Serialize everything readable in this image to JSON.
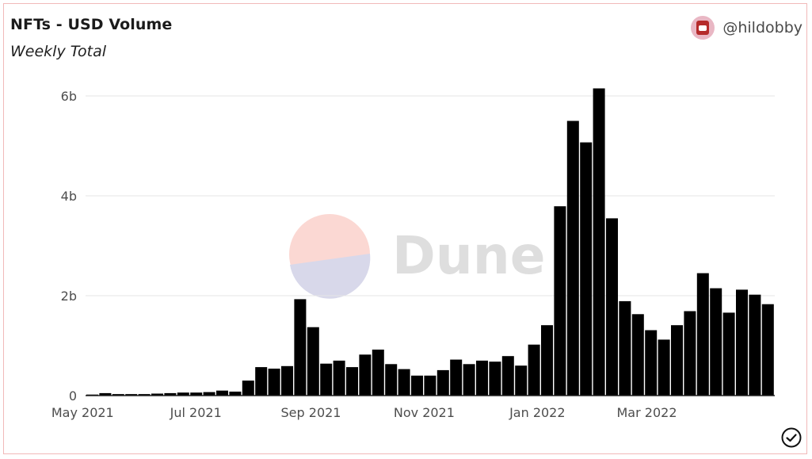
{
  "header": {
    "title": "NFTs - USD Volume",
    "subtitle": "Weekly Total",
    "author": "@hildobby"
  },
  "watermark": {
    "text": "Dune"
  },
  "chart_data": {
    "type": "bar",
    "title": "NFTs - USD Volume",
    "subtitle": "Weekly Total",
    "xlabel": "",
    "ylabel": "",
    "x_ticks": [
      "May 2021",
      "Jul 2021",
      "Sep 2021",
      "Nov 2021",
      "Jan 2022",
      "Mar 2022"
    ],
    "y_ticks": [
      "0",
      "2b",
      "4b",
      "6b"
    ],
    "ylim": [
      0,
      6.2
    ],
    "units": "billions USD",
    "grid": "horizontal",
    "bar_color": "#000000",
    "weeks": [
      "2021-05-03",
      "2021-05-10",
      "2021-05-17",
      "2021-05-24",
      "2021-05-31",
      "2021-06-07",
      "2021-06-14",
      "2021-06-21",
      "2021-06-28",
      "2021-07-05",
      "2021-07-12",
      "2021-07-19",
      "2021-07-26",
      "2021-08-02",
      "2021-08-09",
      "2021-08-16",
      "2021-08-23",
      "2021-08-30",
      "2021-09-06",
      "2021-09-13",
      "2021-09-20",
      "2021-09-27",
      "2021-10-04",
      "2021-10-11",
      "2021-10-18",
      "2021-10-25",
      "2021-11-01",
      "2021-11-08",
      "2021-11-15",
      "2021-11-22",
      "2021-11-29",
      "2021-12-06",
      "2021-12-13",
      "2021-12-20",
      "2021-12-27",
      "2022-01-03",
      "2022-01-10",
      "2022-01-17",
      "2022-01-24",
      "2022-01-31",
      "2022-02-07",
      "2022-02-14",
      "2022-02-21",
      "2022-02-28",
      "2022-03-07",
      "2022-03-14",
      "2022-03-21",
      "2022-03-28",
      "2022-04-04",
      "2022-04-11",
      "2022-04-18",
      "2022-04-25",
      "2022-05-02"
    ],
    "values": [
      0.02,
      0.05,
      0.03,
      0.03,
      0.03,
      0.04,
      0.05,
      0.06,
      0.06,
      0.07,
      0.1,
      0.08,
      0.3,
      0.57,
      0.54,
      0.59,
      1.93,
      1.37,
      0.64,
      0.7,
      0.57,
      0.82,
      0.92,
      0.63,
      0.53,
      0.4,
      0.4,
      0.51,
      0.72,
      0.63,
      0.7,
      0.68,
      0.79,
      0.6,
      1.02,
      1.41,
      3.79,
      5.5,
      5.07,
      6.15,
      3.55,
      1.89,
      1.63,
      1.31,
      1.12,
      1.41,
      1.69,
      2.45,
      2.15,
      1.66,
      2.12,
      2.02,
      1.83
    ]
  }
}
